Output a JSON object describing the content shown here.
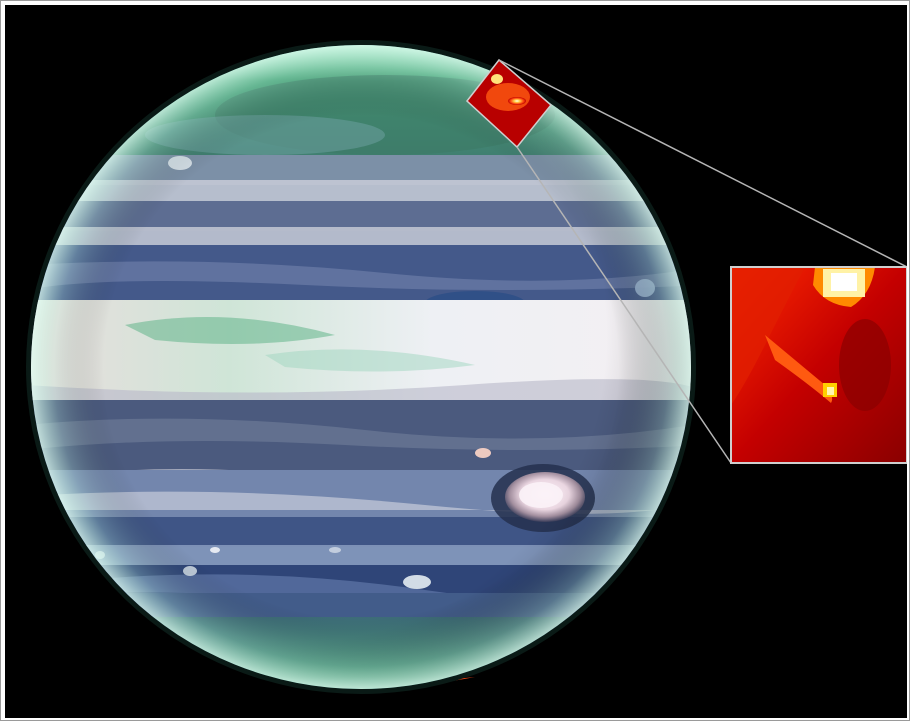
{
  "image": {
    "subject": "jupiter-infrared-composite",
    "background_color": "#000000",
    "frame_color": "#ffffff",
    "zoom_inset": {
      "region": "aurora-north-pole",
      "border_color": "#cfcfcf"
    },
    "palette": {
      "polar_haze": "#3fa87e",
      "aurora": "#ff3a10",
      "belt_blue": "#3f5e8c",
      "zone_white": "#e6e4ea",
      "great_red_spot": "#f2e6ee"
    }
  }
}
